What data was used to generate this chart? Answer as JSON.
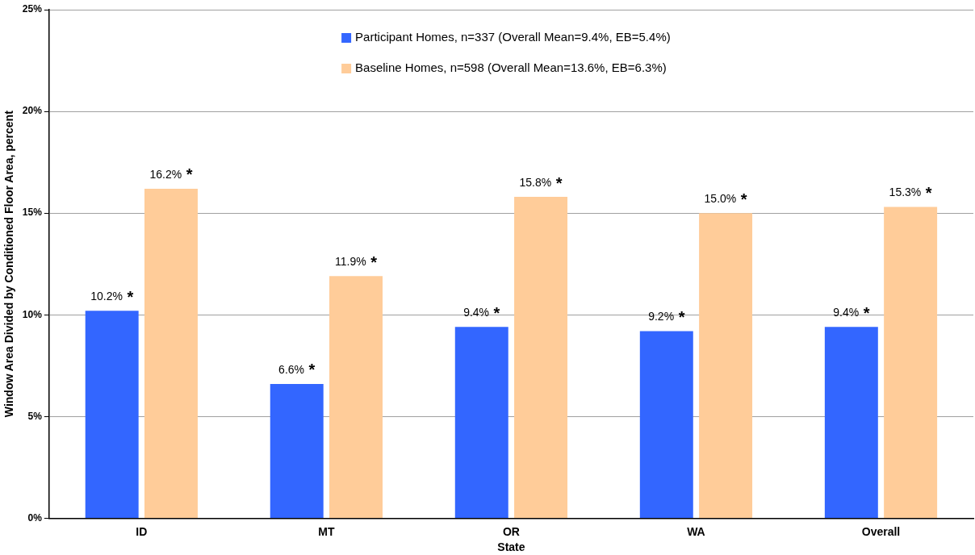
{
  "chart_data": {
    "type": "bar",
    "xlabel": "State",
    "ylabel": "Window Area Divided by Conditioned Floor Area, percent",
    "categories": [
      "ID",
      "MT",
      "OR",
      "WA",
      "Overall"
    ],
    "series": [
      {
        "name": "Participant Homes, n=337 (Overall Mean=9.4%, EB=5.4%)",
        "color": "#3366ff",
        "values": [
          10.2,
          6.6,
          9.4,
          9.2,
          9.4
        ],
        "value_labels": [
          "10.2% *",
          "6.6% *",
          "9.4% *",
          "9.2% *",
          "9.4% *"
        ]
      },
      {
        "name": "Baseline Homes, n=598 (Overall Mean=13.6%, EB=6.3%)",
        "color": "#ffcc99",
        "values": [
          16.2,
          11.9,
          15.8,
          15.0,
          15.3
        ],
        "value_labels": [
          "16.2% *",
          "11.9% *",
          "15.8% *",
          "15.0% *",
          "15.3% *"
        ]
      }
    ],
    "ylim": [
      0,
      25
    ],
    "yticks": [
      {
        "value": 0,
        "label": "0%"
      },
      {
        "value": 5,
        "label": "5%"
      },
      {
        "value": 10,
        "label": "10%"
      },
      {
        "value": 15,
        "label": "15%"
      },
      {
        "value": 20,
        "label": "20%"
      },
      {
        "value": 25,
        "label": "25%"
      }
    ],
    "grid": "y",
    "legend": "top"
  }
}
